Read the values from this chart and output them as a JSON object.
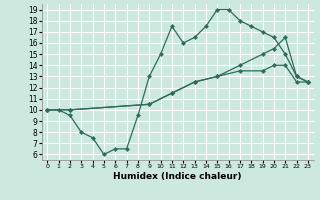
{
  "xlabel": "Humidex (Indice chaleur)",
  "bg_color": "#cce8df",
  "grid_color": "#ffffff",
  "line_color": "#2d6b5e",
  "xlim": [
    -0.5,
    23.5
  ],
  "ylim": [
    5.5,
    19.5
  ],
  "xticks": [
    0,
    1,
    2,
    3,
    4,
    5,
    6,
    7,
    8,
    9,
    10,
    11,
    12,
    13,
    14,
    15,
    16,
    17,
    18,
    19,
    20,
    21,
    22,
    23
  ],
  "yticks": [
    6,
    7,
    8,
    9,
    10,
    11,
    12,
    13,
    14,
    15,
    16,
    17,
    18,
    19
  ],
  "line1_x": [
    0,
    1,
    2,
    3,
    4,
    5,
    6,
    7,
    8,
    9,
    10,
    11,
    12,
    13,
    14,
    15,
    16,
    17,
    18,
    19,
    20,
    21,
    22,
    23
  ],
  "line1_y": [
    10,
    10,
    9.5,
    8,
    7.5,
    6,
    6.5,
    6.5,
    9.5,
    13,
    15,
    17.5,
    16,
    16.5,
    17.5,
    19,
    19,
    18,
    17.5,
    17,
    16.5,
    15,
    13,
    12.5
  ],
  "line2_x": [
    0,
    2,
    9,
    11,
    13,
    15,
    17,
    19,
    20,
    21,
    22,
    23
  ],
  "line2_y": [
    10,
    10,
    10.5,
    11.5,
    12.5,
    13,
    14,
    15,
    15.5,
    16.5,
    13,
    12.5
  ],
  "line3_x": [
    0,
    2,
    9,
    11,
    13,
    15,
    17,
    19,
    20,
    21,
    22,
    23
  ],
  "line3_y": [
    10,
    10,
    10.5,
    11.5,
    12.5,
    13,
    13.5,
    13.5,
    14,
    14,
    12.5,
    12.5
  ]
}
